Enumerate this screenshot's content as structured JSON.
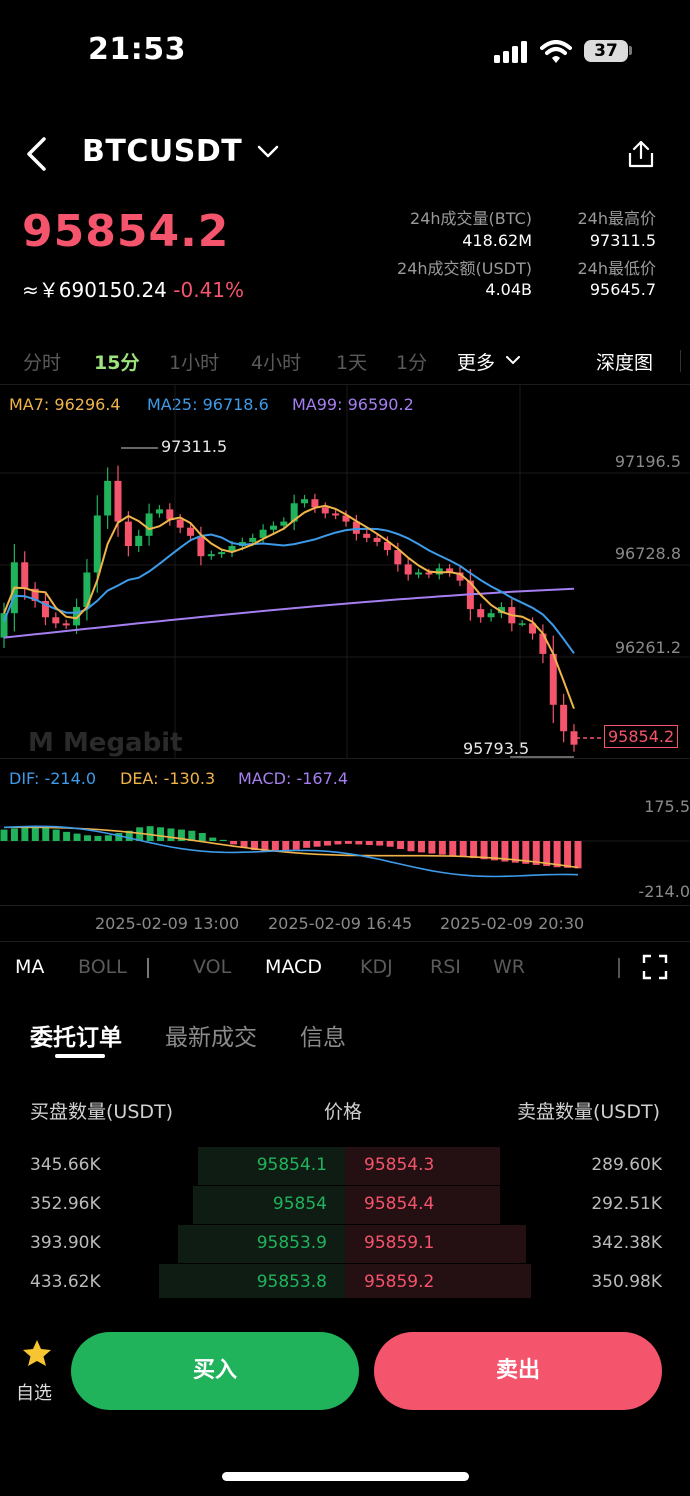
{
  "status_bar": {
    "time": "21:53",
    "battery": "37"
  },
  "header": {
    "symbol": "BTCUSDT"
  },
  "ticker": {
    "last_price": "95854.2",
    "cny_value": "≈￥690150.24",
    "change_pct": "-0.41%",
    "stats": [
      {
        "label": "24h成交量(BTC)",
        "value": "418.62M"
      },
      {
        "label": "24h最高价",
        "value": "97311.5"
      },
      {
        "label": "24h成交额(USDT)",
        "value": "4.04B"
      },
      {
        "label": "24h最低价",
        "value": "95645.7"
      }
    ]
  },
  "timeframes": {
    "items": [
      "分时",
      "15分",
      "1小时",
      "4小时",
      "1天",
      "1分",
      "更多"
    ],
    "selected": "15分",
    "depth_label": "深度图"
  },
  "main_chart": {
    "ma_legend": [
      {
        "label": "MA7: 96296.4",
        "color": "#f0b44a"
      },
      {
        "label": "MA25: 96718.6",
        "color": "#3d9be9"
      },
      {
        "label": "MA99: 96590.2",
        "color": "#a57ff0"
      }
    ],
    "y_ticks": [
      "97196.5",
      "96728.8",
      "96261.2"
    ],
    "high_marker": "97311.5",
    "low_marker": "95793.5",
    "current_price_tag": "95854.2",
    "watermark": "Megabit"
  },
  "macd_chart": {
    "legend": [
      {
        "label": "DIF: -214.0",
        "color": "#3d9be9"
      },
      {
        "label": "DEA: -130.3",
        "color": "#f0b44a"
      },
      {
        "label": "MACD: -167.4",
        "color": "#a57ff0"
      }
    ],
    "y_ticks": [
      "175.5",
      "-214.0"
    ]
  },
  "time_axis": [
    "2025-02-09 13:00",
    "2025-02-09 16:45",
    "2025-02-09 20:30"
  ],
  "indicators": {
    "items": [
      "MA",
      "BOLL",
      "VOL",
      "MACD",
      "KDJ",
      "RSI",
      "WR"
    ],
    "active": [
      "MA",
      "MACD"
    ]
  },
  "tabs": {
    "items": [
      "委托订单",
      "最新成交",
      "信息"
    ],
    "selected": "委托订单"
  },
  "orderbook": {
    "headers": {
      "bid_qty": "买盘数量(USDT)",
      "price": "价格",
      "ask_qty": "卖盘数量(USDT)"
    },
    "rows": [
      {
        "bid_qty": "345.66K",
        "bid_price": "95854.1",
        "ask_price": "95854.3",
        "ask_qty": "289.60K"
      },
      {
        "bid_qty": "352.96K",
        "bid_price": "95854",
        "ask_price": "95854.4",
        "ask_qty": "292.51K"
      },
      {
        "bid_qty": "393.90K",
        "bid_price": "95853.9",
        "ask_price": "95859.1",
        "ask_qty": "342.38K"
      },
      {
        "bid_qty": "433.62K",
        "bid_price": "95853.8",
        "ask_price": "95859.2",
        "ask_qty": "350.98K"
      }
    ]
  },
  "bottom_bar": {
    "favorite_label": "自选",
    "buy_label": "买入",
    "sell_label": "卖出"
  },
  "colors": {
    "up": "#21b35c",
    "down": "#f4546c",
    "ma7": "#f0b44a",
    "ma25": "#3d9be9",
    "ma99": "#a57ff0"
  }
}
